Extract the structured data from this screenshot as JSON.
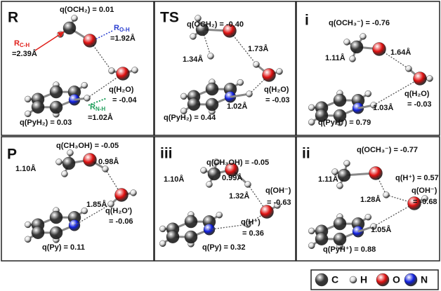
{
  "panels": [
    {
      "label": "R",
      "label_color": "#e87722",
      "texts": [
        {
          "text": "q(OCH₂) = 0.01"
        },
        {
          "symbol": "R",
          "subscript": "C-H",
          "color": "#e0201b"
        },
        {
          "text": "=2.39Å",
          "color": "#e0201b"
        },
        {
          "symbol": "R",
          "subscript": "O-H",
          "color": "#2a3fd0"
        },
        {
          "text": "=1.92Å",
          "color": "#2a3fd0"
        },
        {
          "text": "q(H₂O)"
        },
        {
          "text": "= -0.04"
        },
        {
          "symbol": "R",
          "subscript": "N-H",
          "color": "#1e9e5a"
        },
        {
          "text": "=1.02Å",
          "color": "#1e9e5a"
        },
        {
          "text": "q(PyH₂) = 0.03"
        }
      ]
    },
    {
      "label": "TS",
      "label_color": "#e87722",
      "texts": [
        {
          "text": "q(OCH₂) = -0.40"
        },
        {
          "text": "1.34Å",
          "color": "#e0201b"
        },
        {
          "text": "1.73Å",
          "color": "#2a3fd0"
        },
        {
          "text": "q(H₂O)"
        },
        {
          "text": "= -0.03"
        },
        {
          "text": "1.02Å",
          "color": "#1e9e5a"
        },
        {
          "text": "q(PyH₂) = 0.44"
        }
      ]
    },
    {
      "label": "i",
      "label_color": "#2747b8",
      "texts": [
        {
          "text": "q(OCH₃⁻) = -0.76"
        },
        {
          "text": "1.11Å",
          "color": "#e0201b"
        },
        {
          "text": "1.64Å",
          "color": "#2a3fd0"
        },
        {
          "text": "q(H₂O)"
        },
        {
          "text": "= -0.03"
        },
        {
          "text": "1.03Å",
          "color": "#1e9e5a"
        },
        {
          "text": "q(PyH⁺) = 0.79"
        }
      ]
    },
    {
      "label": "P",
      "label_color": "#e87722",
      "texts": [
        {
          "text": "q(CH₃OH) = -0.05"
        },
        {
          "text": "1.10Å",
          "color": "#e0201b"
        },
        {
          "text": "0.98Å",
          "color": "#2a3fd0"
        },
        {
          "text": "q(H₂O′)"
        },
        {
          "text": "= -0.06"
        },
        {
          "text": "1.85Å",
          "color": "#1e9e5a"
        },
        {
          "text": "q(Py) = 0.11"
        }
      ]
    },
    {
      "label": "iii",
      "label_color": "#2747b8",
      "texts": [
        {
          "text": "q(CH₃OH) = -0.05"
        },
        {
          "text": "1.10Å",
          "color": "#e0201b"
        },
        {
          "text": "0.99Å",
          "color": "#2a3fd0"
        },
        {
          "text": "q(OH⁻)"
        },
        {
          "text": "= -0.63"
        },
        {
          "text": "1.32Å",
          "color": "#1e9e5a"
        },
        {
          "text": "q(H⁺)"
        },
        {
          "text": "= 0.36"
        },
        {
          "text": "q(Py) = 0.32"
        }
      ]
    },
    {
      "label": "ii",
      "label_color": "#2747b8",
      "texts": [
        {
          "text": "q(OCH₃⁻) = -0.77"
        },
        {
          "text": "1.11Å",
          "color": "#e0201b"
        },
        {
          "text": "q(H⁺) = 0.57"
        },
        {
          "text": "1.28Å",
          "color": "#2a3fd0"
        },
        {
          "text": "q(OH⁻)"
        },
        {
          "text": "= -0.68"
        },
        {
          "text": "1.05Å",
          "color": "#1e9e5a"
        },
        {
          "text": "q(PyH⁺) = 0.88"
        }
      ]
    }
  ],
  "legend": [
    {
      "symbol": "C",
      "color": "#3a3a3a"
    },
    {
      "symbol": "H",
      "color": "#d8d8d8"
    },
    {
      "symbol": "O",
      "color": "#e01010"
    },
    {
      "symbol": "N",
      "color": "#1020e0"
    }
  ]
}
